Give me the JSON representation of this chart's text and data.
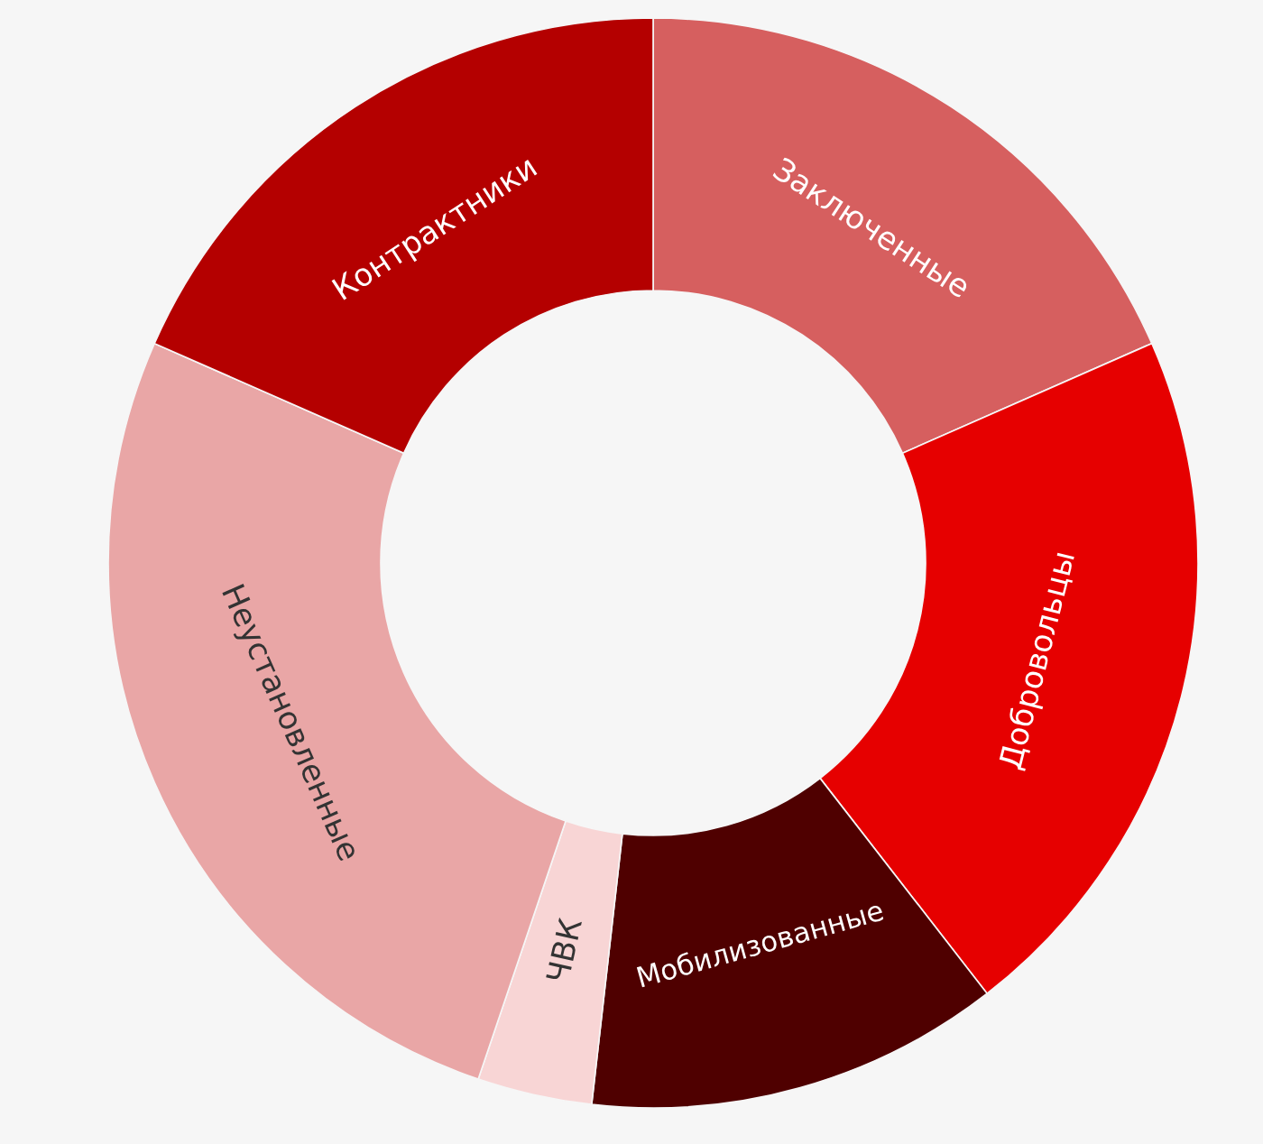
{
  "chart_data": {
    "type": "donut",
    "categories": [
      "Заключенные",
      "Добровольцы",
      "Мобилизованные",
      "ЧВК",
      "Неустановленные",
      "Контрактники"
    ],
    "values": [
      18.4,
      21.1,
      12.3,
      3.4,
      26.4,
      18.4
    ],
    "colors": [
      "#d65f5f",
      "#e60000",
      "#4f0000",
      "#f8d5d5",
      "#e9a6a6",
      "#b40000"
    ]
  }
}
